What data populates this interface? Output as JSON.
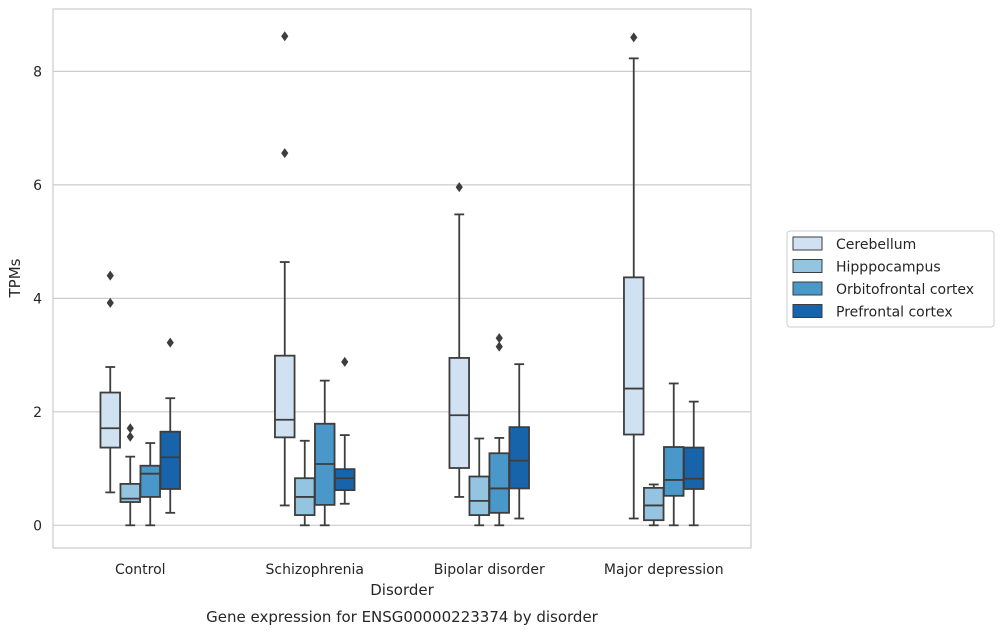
{
  "caption": "Gene expression for ENSG00000223374 by disorder",
  "chart_data": {
    "type": "box",
    "xlabel": "Disorder",
    "ylabel": "TPMs",
    "ylim": [
      -0.4,
      9.1
    ],
    "yticks": [
      0,
      2,
      4,
      6,
      8
    ],
    "categories": [
      "Control",
      "Schizophrenia",
      "Bipolar disorder",
      "Major depression"
    ],
    "grid": "horizontal",
    "legend_position": "right",
    "series": [
      {
        "name": "Cerebellum",
        "color": "#d0e1f2",
        "boxes": [
          {
            "whislo": 0.58,
            "q1": 1.37,
            "med": 1.71,
            "q3": 2.34,
            "whishi": 2.79,
            "fliers": [
              3.92,
              4.4
            ]
          },
          {
            "whislo": 0.35,
            "q1": 1.55,
            "med": 1.86,
            "q3": 2.99,
            "whishi": 4.64,
            "fliers": [
              6.56,
              8.62
            ]
          },
          {
            "whislo": 0.5,
            "q1": 1.01,
            "med": 1.94,
            "q3": 2.95,
            "whishi": 5.48,
            "fliers": [
              5.96
            ]
          },
          {
            "whislo": 0.12,
            "q1": 1.6,
            "med": 2.41,
            "q3": 4.37,
            "whishi": 8.23,
            "fliers": [
              8.6
            ]
          }
        ]
      },
      {
        "name": "Hipppocampus",
        "color": "#94c4df",
        "boxes": [
          {
            "whislo": 0.0,
            "q1": 0.41,
            "med": 0.47,
            "q3": 0.73,
            "whishi": 1.21,
            "fliers": [
              1.56,
              1.71
            ]
          },
          {
            "whislo": 0.0,
            "q1": 0.18,
            "med": 0.5,
            "q3": 0.83,
            "whishi": 1.49,
            "fliers": []
          },
          {
            "whislo": 0.0,
            "q1": 0.18,
            "med": 0.43,
            "q3": 0.86,
            "whishi": 1.53,
            "fliers": []
          },
          {
            "whislo": 0.0,
            "q1": 0.09,
            "med": 0.35,
            "q3": 0.66,
            "whishi": 0.72,
            "fliers": []
          }
        ]
      },
      {
        "name": "Orbitofrontal cortex",
        "color": "#4a98c9",
        "boxes": [
          {
            "whislo": 0.0,
            "q1": 0.5,
            "med": 0.91,
            "q3": 1.05,
            "whishi": 1.45,
            "fliers": []
          },
          {
            "whislo": 0.0,
            "q1": 0.36,
            "med": 1.08,
            "q3": 1.79,
            "whishi": 2.55,
            "fliers": []
          },
          {
            "whislo": 0.0,
            "q1": 0.22,
            "med": 0.65,
            "q3": 1.27,
            "whishi": 1.54,
            "fliers": [
              3.15,
              3.3
            ]
          },
          {
            "whislo": 0.0,
            "q1": 0.52,
            "med": 0.8,
            "q3": 1.38,
            "whishi": 2.5,
            "fliers": []
          }
        ]
      },
      {
        "name": "Prefrontal cortex",
        "color": "#1764ab",
        "boxes": [
          {
            "whislo": 0.22,
            "q1": 0.64,
            "med": 1.2,
            "q3": 1.65,
            "whishi": 2.24,
            "fliers": [
              3.22
            ]
          },
          {
            "whislo": 0.38,
            "q1": 0.62,
            "med": 0.83,
            "q3": 0.99,
            "whishi": 1.59,
            "fliers": [
              2.88
            ]
          },
          {
            "whislo": 0.12,
            "q1": 0.65,
            "med": 1.14,
            "q3": 1.73,
            "whishi": 2.84,
            "fliers": []
          },
          {
            "whislo": 0.0,
            "q1": 0.64,
            "med": 0.82,
            "q3": 1.37,
            "whishi": 2.18,
            "fliers": []
          }
        ]
      }
    ]
  }
}
